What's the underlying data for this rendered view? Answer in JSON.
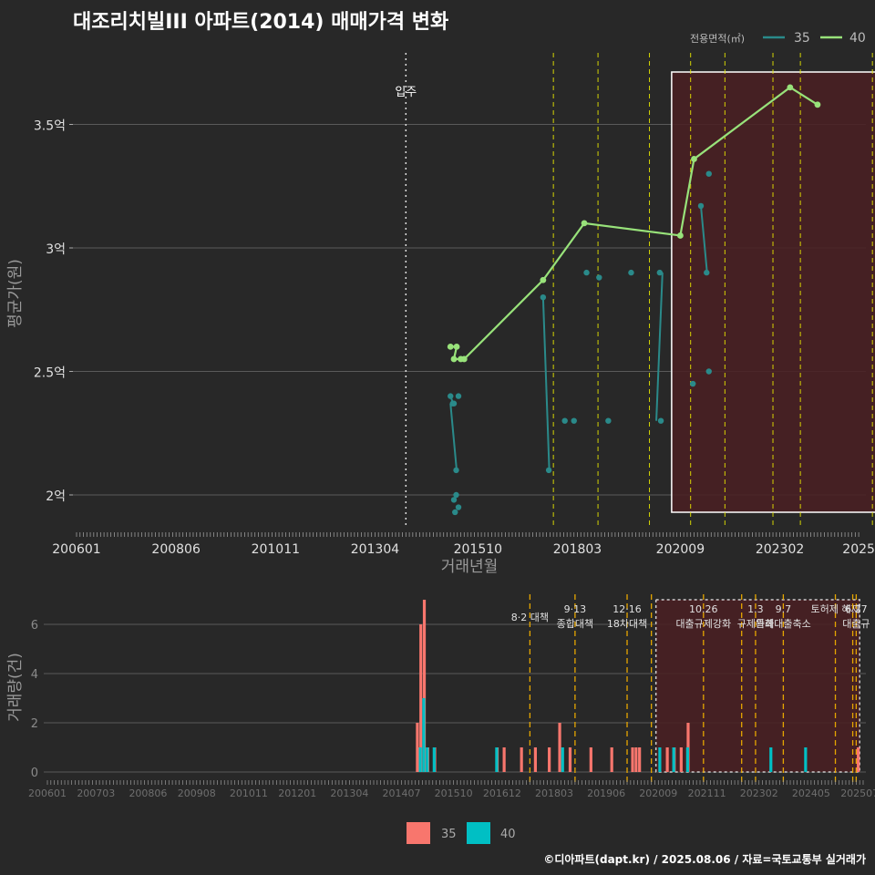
{
  "title": "대조리치빌III 아파트(2014) 매매가격 변화",
  "footer": "©디아파트(dapt.kr) / 2025.08.06 / 자료=국토교통부 실거래가",
  "colors": {
    "s35": "#2a8a8a",
    "s40": "#98e27a",
    "bar35": "#f8766d",
    "bar40": "#00bfc4",
    "shade": "#4a1e22",
    "policy": "#e6e600",
    "policyBottom": "#e6a600"
  },
  "chart_data": [
    {
      "type": "line",
      "title": "대조리치빌III 아파트(2014) 매매가격 변화",
      "xlabel": "거래년월",
      "ylabel": "평균가(원)",
      "x_ticks": [
        "200601",
        "200806",
        "201011",
        "201304",
        "201510",
        "201803",
        "202009",
        "202302",
        "2025"
      ],
      "y_ticks": [
        {
          "v": 2.0,
          "label": "2억"
        },
        {
          "v": 2.5,
          "label": "2.5억"
        },
        {
          "v": 3.0,
          "label": "3억"
        },
        {
          "v": 3.5,
          "label": "3.5억"
        }
      ],
      "ylim": [
        1.85,
        3.8
      ],
      "legend_title": "전용면적(㎡)",
      "legend": [
        "35",
        "40"
      ],
      "move_in_label": "입주",
      "move_in": "2014-01",
      "series": [
        {
          "name": "35",
          "points": [
            [
              "2015-02",
              2.4
            ],
            [
              "2015-02",
              2.37
            ],
            [
              "2015-02",
              1.93
            ],
            [
              "2015-03",
              1.98
            ],
            [
              "2015-03",
              2.1
            ],
            [
              "2015-03",
              2.4
            ],
            [
              "2015-03",
              2.37
            ],
            [
              "2015-03",
              2.0
            ],
            [
              "2015-03",
              1.95
            ],
            [
              "2017-05",
              2.8
            ],
            [
              "2017-06",
              2.1
            ],
            [
              "2017-10",
              2.3
            ],
            [
              "2018-02",
              2.3
            ],
            [
              "2018-05",
              2.9
            ],
            [
              "2018-08",
              2.88
            ],
            [
              "2018-12",
              2.3
            ],
            [
              "2019-06",
              2.9
            ],
            [
              "2020-02",
              2.3
            ],
            [
              "2020-03",
              2.9
            ],
            [
              "2020-12",
              2.45
            ],
            [
              "2021-04",
              2.5
            ],
            [
              "2021-03",
              3.17
            ],
            [
              "2021-04",
              2.9
            ],
            [
              "2021-04",
              3.3
            ],
            [
              "2025-07",
              2.6
            ]
          ]
        },
        {
          "name": "40",
          "points": [
            [
              "2015-02",
              2.6
            ],
            [
              "2015-03",
              2.6
            ],
            [
              "2015-03",
              2.55
            ],
            [
              "2015-05",
              2.55
            ],
            [
              "2015-06",
              2.55
            ],
            [
              "2017-05",
              2.87
            ],
            [
              "2018-05",
              3.1
            ],
            [
              "2020-09",
              3.05
            ],
            [
              "2021-01",
              3.36
            ],
            [
              "2023-05",
              3.65
            ],
            [
              "2024-01",
              3.58
            ]
          ]
        }
      ],
      "policy_lines": [
        "2017-08",
        "2018-09",
        "2019-12",
        "2020-12",
        "2021-10",
        "2022-12",
        "2023-08",
        "2025-05",
        "2025-07"
      ],
      "highlight": {
        "from": "2020-07",
        "to": "2025-07"
      }
    },
    {
      "type": "bar",
      "ylabel": "거래량(건)",
      "y_ticks": [
        0,
        2,
        4,
        6
      ],
      "ylim": [
        0,
        7.2
      ],
      "x_ticks": [
        "200601",
        "200703",
        "200806",
        "200908",
        "201011",
        "201201",
        "201304",
        "201407",
        "201510",
        "201612",
        "201803",
        "201906",
        "202009",
        "202111",
        "202302",
        "202405",
        "202507"
      ],
      "legend": [
        "35",
        "40"
      ],
      "series": [
        {
          "name": "35",
          "values": [
            [
              "2014-12",
              2
            ],
            [
              "2015-01",
              6
            ],
            [
              "2015-02",
              7
            ],
            [
              "2015-03",
              1
            ],
            [
              "2015-05",
              1
            ],
            [
              "2016-11",
              1
            ],
            [
              "2017-01",
              1
            ],
            [
              "2017-06",
              1
            ],
            [
              "2017-10",
              1
            ],
            [
              "2018-02",
              1
            ],
            [
              "2018-05",
              2
            ],
            [
              "2018-08",
              1
            ],
            [
              "2019-02",
              1
            ],
            [
              "2019-08",
              1
            ],
            [
              "2020-02",
              1
            ],
            [
              "2020-03",
              1
            ],
            [
              "2020-04",
              1
            ],
            [
              "2020-12",
              1
            ],
            [
              "2021-02",
              1
            ],
            [
              "2021-04",
              1
            ],
            [
              "2021-06",
              2
            ],
            [
              "2025-07",
              1
            ]
          ]
        },
        {
          "name": "40",
          "values": [
            [
              "2014-12",
              1
            ],
            [
              "2015-01",
              3
            ],
            [
              "2015-02",
              1
            ],
            [
              "2015-04",
              1
            ],
            [
              "2016-10",
              1
            ],
            [
              "2018-05",
              1
            ],
            [
              "2020-09",
              1
            ],
            [
              "2021-01",
              1
            ],
            [
              "2021-05",
              1
            ],
            [
              "2023-05",
              1
            ],
            [
              "2024-03",
              1
            ]
          ]
        }
      ],
      "policies": [
        {
          "date": "2017-08",
          "label": "8·2 대책",
          "row": 1
        },
        {
          "date": "2018-09",
          "label": "9·13\n종합대책",
          "row": 0
        },
        {
          "date": "2019-12",
          "label": "12·16\n18차대책",
          "row": 0
        },
        {
          "date": "2020-07",
          "label": "",
          "row": 0
        },
        {
          "date": "2021-10",
          "label": "10.26\n대출규제강화",
          "row": 0
        },
        {
          "date": "2022-09",
          "label": "",
          "row": 0
        },
        {
          "date": "2023-01",
          "label": "1.3\n규제완화",
          "row": 0
        },
        {
          "date": "2023-09",
          "label": "9.7\n특례대출축소",
          "row": 0
        },
        {
          "date": "2024-12",
          "label": "토허제 해제",
          "row": 0
        },
        {
          "date": "2025-05",
          "label": "",
          "row": 0
        },
        {
          "date": "2025-06",
          "label": "6.27\n대출규",
          "row": 0
        }
      ],
      "highlight": {
        "from": "2020-07",
        "to": "2025-07"
      }
    }
  ]
}
